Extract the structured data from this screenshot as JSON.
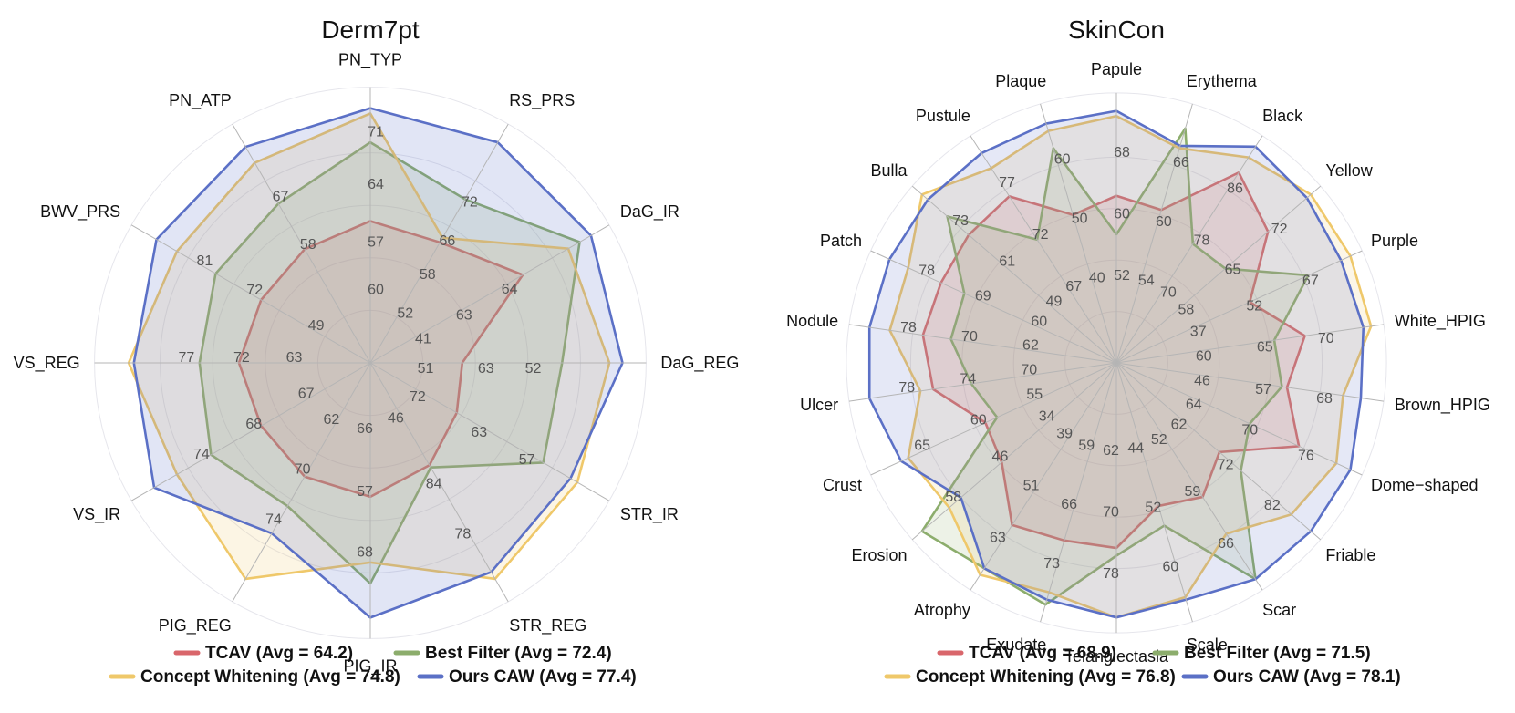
{
  "chart_data": [
    {
      "type": "radar",
      "title": "Derm7pt",
      "axes": [
        "PN_TYP",
        "RS_PRS",
        "DaG_IR",
        "DaG_REG",
        "STR_IR",
        "STR_REG",
        "PIG_IR",
        "PIG_REG",
        "VS_IR",
        "VS_REG",
        "BWV_PRS",
        "PN_ATP"
      ],
      "value_labels": [
        [
          "71",
          "64",
          "57",
          "60"
        ],
        [
          "72",
          "66",
          "58",
          "52"
        ],
        [
          "64",
          "63",
          "41"
        ],
        [
          "52",
          "63",
          "51"
        ],
        [
          "57",
          "63",
          "72"
        ],
        [
          "78",
          "84",
          "46"
        ],
        [
          "68",
          "57",
          "66"
        ],
        [
          "74",
          "70",
          "62"
        ],
        [
          "74",
          "68",
          "67"
        ],
        [
          "77",
          "72",
          "63"
        ],
        [
          "81",
          "72",
          "49"
        ],
        [
          "67",
          "58"
        ]
      ],
      "r_range": [
        0,
        100
      ],
      "series": [
        {
          "name": "TCAV",
          "avg": 64.2,
          "color": "#d9666b",
          "values": [
            54,
            53,
            67,
            35,
            38,
            45,
            51,
            50,
            48,
            50,
            48,
            50
          ]
        },
        {
          "name": "Best Filter",
          "avg": 72.4,
          "color": "#8cad6c",
          "values": [
            84,
            72,
            92,
            73,
            76,
            46,
            84,
            63,
            70,
            65,
            68,
            70
          ]
        },
        {
          "name": "Concept Whitening",
          "avg": 74.8,
          "color": "#efc86a",
          "values": [
            95,
            55,
            87,
            91,
            91,
            95,
            76,
            95,
            85,
            92,
            85,
            88
          ]
        },
        {
          "name": "Ours CAW",
          "avg": 77.4,
          "color": "#5b70c6",
          "values": [
            97,
            97,
            97,
            96,
            88,
            92,
            97,
            75,
            95,
            90,
            94,
            95
          ]
        }
      ]
    },
    {
      "type": "radar",
      "title": "SkinCon",
      "axes": [
        "Papule",
        "Erythema",
        "Black",
        "Yellow",
        "Purple",
        "White_HPIG",
        "Brown_HPIG",
        "Dome−shaped",
        "Friable",
        "Scar",
        "Scale",
        "Telangiectasia",
        "Exudate",
        "Atrophy",
        "Erosion",
        "Crust",
        "Ulcer",
        "Nodule",
        "Patch",
        "Bulla",
        "Pustule",
        "Plaque"
      ],
      "value_labels": [
        [
          "68",
          "60",
          "52"
        ],
        [
          "66",
          "60",
          "54"
        ],
        [
          "86",
          "78",
          "70"
        ],
        [
          "72",
          "65",
          "58"
        ],
        [
          "67",
          "52",
          "37"
        ],
        [
          "70",
          "65",
          "60"
        ],
        [
          "68",
          "57",
          "46"
        ],
        [
          "76",
          "70",
          "64"
        ],
        [
          "82",
          "72",
          "62"
        ],
        [
          "66",
          "59",
          "52"
        ],
        [
          "60",
          "52",
          "44"
        ],
        [
          "78",
          "70",
          "62"
        ],
        [
          "73",
          "66",
          "59"
        ],
        [
          "63",
          "51",
          "39"
        ],
        [
          "58",
          "46",
          "34"
        ],
        [
          "65",
          "60",
          "55"
        ],
        [
          "78",
          "74",
          "70"
        ],
        [
          "78",
          "70",
          "62"
        ],
        [
          "78",
          "69",
          "60"
        ],
        [
          "73",
          "61",
          "49"
        ],
        [
          "77",
          "72",
          "67"
        ],
        [
          "60",
          "50",
          "40"
        ]
      ],
      "r_range": [
        0,
        100
      ],
      "series": [
        {
          "name": "TCAV",
          "avg": 68.9,
          "color": "#d9666b",
          "values": [
            65,
            62,
            88,
            78,
            57,
            74,
            67,
            78,
            53,
            62,
            58,
            72,
            72,
            75,
            59,
            56,
            72,
            76,
            75,
            76,
            77,
            60
          ]
        },
        {
          "name": "Best Filter",
          "avg": 71.5,
          "color": "#8cad6c",
          "values": [
            50,
            95,
            55,
            56,
            82,
            62,
            65,
            57,
            64,
            100,
            66,
            75,
            98,
            95,
            100,
            51,
            57,
            65,
            65,
            87,
            57,
            87
          ]
        },
        {
          "name": "Concept Whitening",
          "avg": 76.8,
          "color": "#efc86a",
          "values": [
            96,
            87,
            95,
            100,
            100,
            100,
            89,
            94,
            90,
            79,
            95,
            99,
            93,
            98,
            86,
            89,
            77,
            89,
            89,
            100,
            90,
            94
          ]
        },
        {
          "name": "Ours CAW",
          "avg": 78.1,
          "color": "#5b70c6",
          "values": [
            98,
            88,
            100,
            98,
            96,
            97,
            96,
            100,
            100,
            100,
            96,
            99,
            96,
            95,
            80,
            92,
            97,
            97,
            97,
            97,
            97,
            97
          ]
        }
      ]
    }
  ],
  "legends": [
    [
      {
        "text": "TCAV (Avg = 64.2)",
        "color": "#d9666b"
      },
      {
        "text": "Best Filter (Avg = 72.4)",
        "color": "#8cad6c"
      },
      {
        "text": "Concept Whitening (Avg = 74.8)",
        "color": "#efc86a"
      },
      {
        "text": "Ours CAW (Avg = 77.4)",
        "color": "#5b70c6"
      }
    ],
    [
      {
        "text": "TCAV (Avg = 68.9)",
        "color": "#d9666b"
      },
      {
        "text": "Best Filter (Avg = 71.5)",
        "color": "#8cad6c"
      },
      {
        "text": "Concept Whitening (Avg = 76.8)",
        "color": "#efc86a"
      },
      {
        "text": "Ours CAW (Avg = 78.1)",
        "color": "#5b70c6"
      }
    ]
  ]
}
